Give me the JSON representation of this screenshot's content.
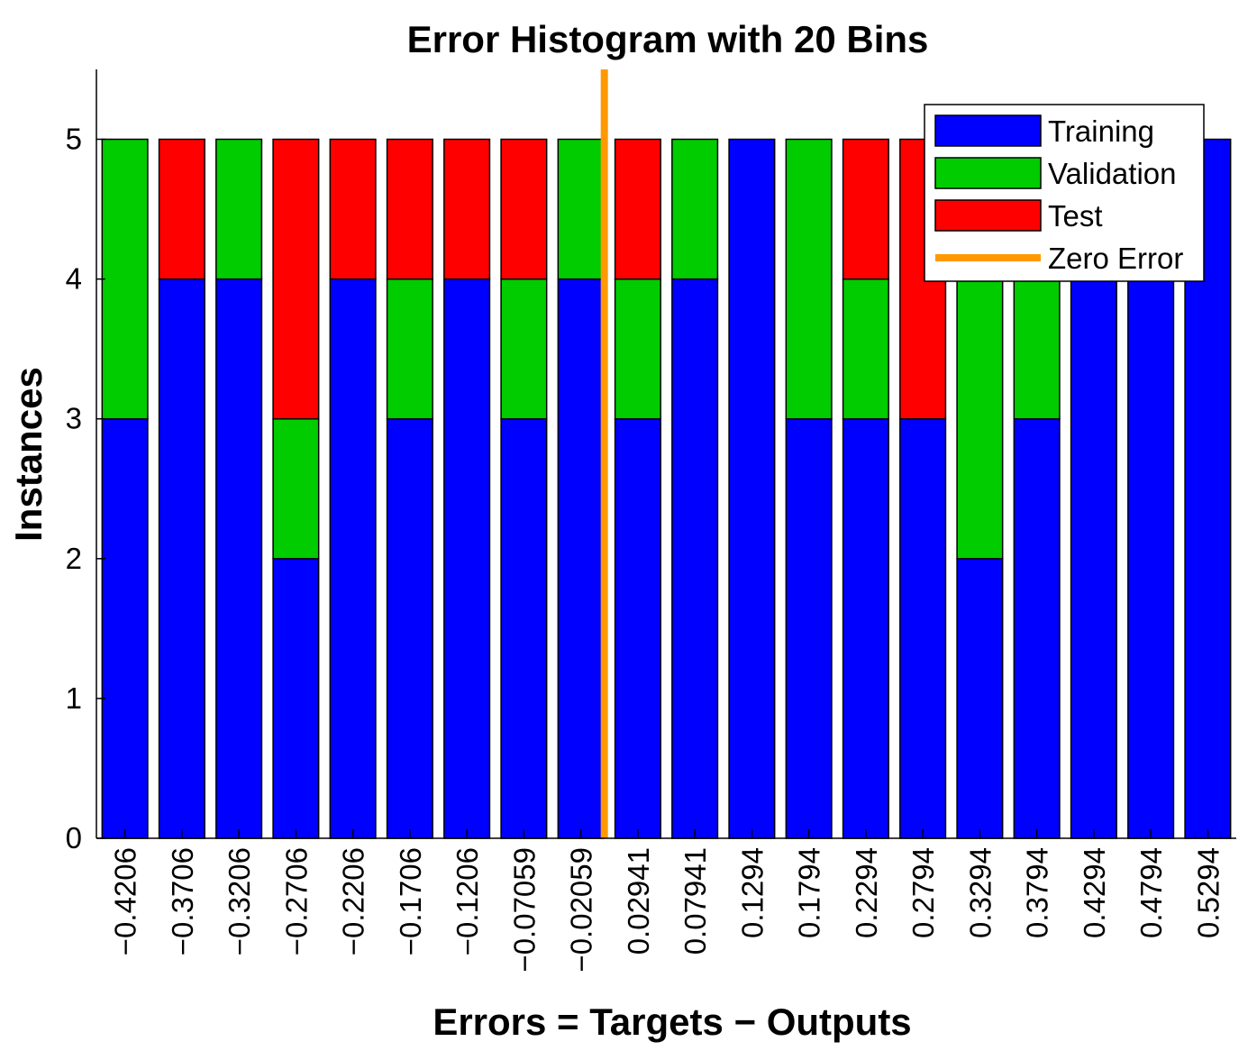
{
  "chart_data": {
    "type": "bar",
    "stacked": true,
    "title": "Error Histogram with 20 Bins",
    "xlabel": "Errors = Targets − Outputs",
    "ylabel": "Instances",
    "categories": [
      "−0.4206",
      "−0.3706",
      "−0.3206",
      "−0.2706",
      "−0.2206",
      "−0.1706",
      "−0.1206",
      "−0.07059",
      "−0.02059",
      "0.02941",
      "0.07941",
      "0.1294",
      "0.1794",
      "0.2294",
      "0.2794",
      "0.3294",
      "0.3794",
      "0.4294",
      "0.4794",
      "0.5294"
    ],
    "series": [
      {
        "name": "Training",
        "color": "#0000ff",
        "values": [
          3,
          4,
          4,
          2,
          4,
          3,
          4,
          3,
          4,
          3,
          4,
          5,
          3,
          3,
          3,
          2,
          3,
          4,
          4,
          5
        ]
      },
      {
        "name": "Validation",
        "color": "#00cc00",
        "values": [
          2,
          0,
          1,
          1,
          0,
          1,
          0,
          1,
          1,
          1,
          1,
          0,
          2,
          1,
          0,
          2,
          1,
          0,
          0,
          0
        ]
      },
      {
        "name": "Test",
        "color": "#ff0000",
        "values": [
          0,
          1,
          0,
          2,
          1,
          1,
          1,
          1,
          0,
          1,
          0,
          0,
          0,
          1,
          2,
          0,
          0,
          0,
          0,
          0
        ]
      }
    ],
    "reference_line": {
      "name": "Zero Error",
      "x": 0,
      "color": "#ff9900"
    },
    "yticks": [
      "0",
      "1",
      "2",
      "3",
      "4",
      "5"
    ],
    "ylim": [
      0,
      5.5
    ],
    "grid": false,
    "legend_position": "top-right"
  }
}
